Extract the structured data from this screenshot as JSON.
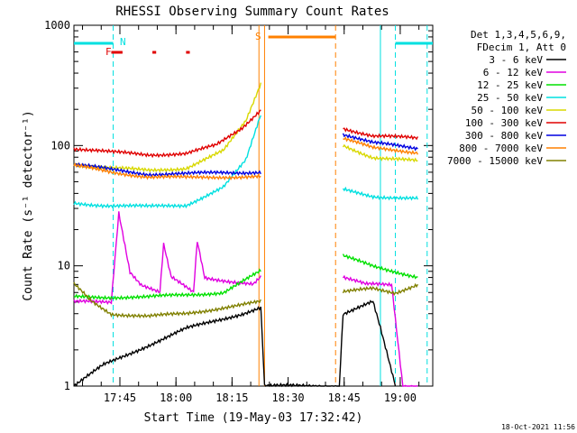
{
  "chart_data": {
    "type": "line",
    "title": "RHESSI Observing Summary Count Rates",
    "xlabel": "Start Time (19-May-03 17:32:42)",
    "ylabel": "Count Rate (s⁻¹ detector⁻¹)",
    "yscale": "log",
    "ylim": [
      1,
      1000
    ],
    "xlim_minutes": [
      0,
      96
    ],
    "x_tick_labels": [
      "17:45",
      "18:00",
      "18:15",
      "18:30",
      "18:45",
      "19:00"
    ],
    "y_tick_labels": [
      "1",
      "10",
      "100",
      "1000"
    ],
    "legend_header": [
      "Det 1,3,4,5,6,9,",
      "FDecim 1, Att 0"
    ],
    "legend_position": "right",
    "timestamp": "18-Oct-2021 11:56",
    "flags": {
      "N_label": "N",
      "S_label": "S",
      "F_label": "F"
    },
    "series": [
      {
        "name": "3 - 6 keV",
        "color": "#000000",
        "values": [
          [
            0,
            1.0
          ],
          [
            8,
            1.5
          ],
          [
            30,
            3
          ],
          [
            45,
            4
          ],
          [
            50,
            4.5
          ],
          [
            51,
            1.0
          ],
          [
            71,
            1.0
          ],
          [
            72,
            4
          ],
          [
            80,
            5
          ],
          [
            82,
            3
          ],
          [
            86,
            1.0
          ]
        ]
      },
      {
        "name": "6 - 12 keV",
        "color": "#e000e0",
        "values": [
          [
            0,
            5
          ],
          [
            10,
            5
          ],
          [
            12,
            28
          ],
          [
            15,
            9
          ],
          [
            18,
            7
          ],
          [
            23,
            6
          ],
          [
            24,
            15
          ],
          [
            26,
            8
          ],
          [
            32,
            6
          ],
          [
            33,
            16
          ],
          [
            35,
            8
          ],
          [
            48,
            7
          ],
          [
            50,
            8
          ],
          [
            51,
            null
          ],
          [
            72,
            8
          ],
          [
            78,
            7
          ],
          [
            85,
            7
          ],
          [
            88,
            1.0
          ],
          [
            92,
            1.0
          ]
        ]
      },
      {
        "name": "12 - 25 keV",
        "color": "#00e000",
        "values": [
          [
            0,
            5.5
          ],
          [
            20,
            5.5
          ],
          [
            40,
            6
          ],
          [
            50,
            9
          ],
          [
            51,
            null
          ],
          [
            72,
            12
          ],
          [
            80,
            10
          ],
          [
            86,
            9
          ],
          [
            92,
            8
          ]
        ]
      },
      {
        "name": "25 - 50 keV",
        "color": "#00e0e0",
        "values": [
          [
            0,
            33
          ],
          [
            8,
            32
          ],
          [
            20,
            31
          ],
          [
            30,
            32
          ],
          [
            40,
            45
          ],
          [
            46,
            75
          ],
          [
            50,
            180
          ],
          [
            51,
            null
          ],
          [
            72,
            43
          ],
          [
            80,
            38
          ],
          [
            92,
            36
          ]
        ]
      },
      {
        "name": "50 - 100 keV",
        "color": "#d8d800",
        "values": [
          [
            0,
            70
          ],
          [
            10,
            65
          ],
          [
            20,
            62
          ],
          [
            30,
            65
          ],
          [
            40,
            90
          ],
          [
            46,
            160
          ],
          [
            50,
            330
          ],
          [
            51,
            null
          ],
          [
            72,
            100
          ],
          [
            80,
            80
          ],
          [
            92,
            74
          ]
        ]
      },
      {
        "name": "100 - 300 keV",
        "color": "#e00000",
        "values": [
          [
            0,
            95
          ],
          [
            10,
            88
          ],
          [
            20,
            84
          ],
          [
            30,
            86
          ],
          [
            38,
            100
          ],
          [
            45,
            140
          ],
          [
            50,
            200
          ],
          [
            51,
            null
          ],
          [
            72,
            140
          ],
          [
            80,
            120
          ],
          [
            92,
            115
          ]
        ]
      },
      {
        "name": "300 - 800 keV",
        "color": "#0000e0",
        "values": [
          [
            0,
            70
          ],
          [
            10,
            63
          ],
          [
            20,
            58
          ],
          [
            30,
            58
          ],
          [
            40,
            60
          ],
          [
            50,
            60
          ],
          [
            51,
            null
          ],
          [
            72,
            125
          ],
          [
            80,
            105
          ],
          [
            92,
            95
          ]
        ]
      },
      {
        "name": "800 - 7000 keV",
        "color": "#ff8000",
        "values": [
          [
            0,
            68
          ],
          [
            10,
            60
          ],
          [
            20,
            55
          ],
          [
            30,
            54
          ],
          [
            40,
            55
          ],
          [
            50,
            55
          ],
          [
            51,
            null
          ],
          [
            72,
            115
          ],
          [
            80,
            95
          ],
          [
            92,
            88
          ]
        ]
      },
      {
        "name": "7000 - 15000 keV",
        "color": "#808000",
        "values": [
          [
            0,
            7
          ],
          [
            5,
            5
          ],
          [
            10,
            4
          ],
          [
            20,
            3.8
          ],
          [
            30,
            4
          ],
          [
            40,
            4.5
          ],
          [
            50,
            5
          ],
          [
            51,
            null
          ],
          [
            72,
            6
          ],
          [
            80,
            6.5
          ],
          [
            86,
            6
          ],
          [
            92,
            7
          ]
        ]
      }
    ],
    "markers": {
      "attenuator_cyan": [
        [
          0,
          10.5
        ],
        [
          86,
          96
        ]
      ],
      "saa_orange": [
        52,
        70
      ],
      "flare_red": [
        [
          10,
          13
        ],
        [
          21,
          22
        ],
        [
          30,
          31
        ]
      ],
      "vertical_cyan_dashed": [
        10.5,
        86,
        94.5
      ],
      "vertical_cyan_solid": [
        82
      ],
      "vertical_orange_solid": [
        49.5,
        51
      ],
      "vertical_orange_dashed": [
        70
      ]
    }
  }
}
